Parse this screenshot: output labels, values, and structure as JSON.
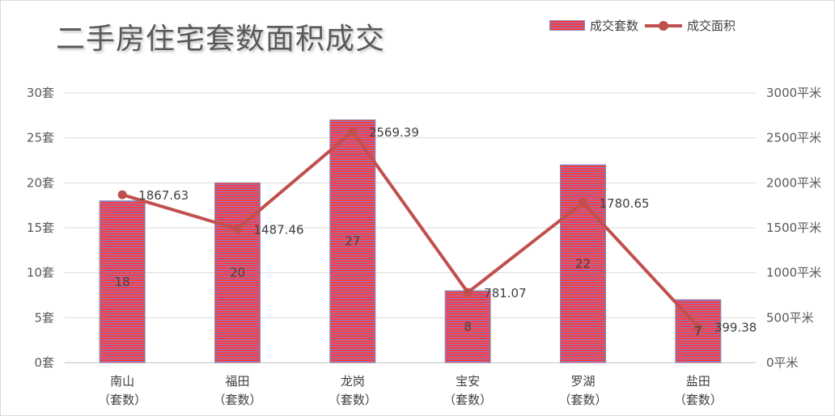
{
  "chart_data": {
    "type": "bar",
    "title": "二手房住宅套数面积成交",
    "categories": [
      [
        "南山",
        "（套数）"
      ],
      [
        "福田",
        "（套数）"
      ],
      [
        "龙岗",
        "（套数）"
      ],
      [
        "宝安",
        "（套数）"
      ],
      [
        "罗湖",
        "（套数）"
      ],
      [
        "盐田",
        "（套数）"
      ]
    ],
    "series": [
      {
        "name": "成交套数",
        "type": "bar",
        "axis": "left",
        "values": [
          18,
          20,
          27,
          8,
          22,
          7
        ],
        "color": "#ff3b3b",
        "stripe_color": "#7f7fd0",
        "data_labels": [
          "18",
          "20",
          "27",
          "8",
          "22",
          "7"
        ]
      },
      {
        "name": "成交面积",
        "type": "line",
        "axis": "right",
        "values": [
          1867.63,
          1487.46,
          2569.39,
          781.07,
          1780.65,
          399.38
        ],
        "color": "#c0504d",
        "data_labels": [
          "1867.63",
          "1487.46",
          "2569.39",
          "781.07",
          "1780.65",
          "399.38"
        ]
      }
    ],
    "y_left": {
      "range": [
        0,
        30
      ],
      "ticks": [
        0,
        5,
        10,
        15,
        20,
        25,
        30
      ],
      "tick_labels": [
        "0套",
        "5套",
        "10套",
        "15套",
        "20套",
        "25套",
        "30套"
      ]
    },
    "y_right": {
      "range": [
        0,
        3000
      ],
      "ticks": [
        0,
        500,
        1000,
        1500,
        2000,
        2500,
        3000
      ],
      "tick_labels": [
        "0平米",
        "500平米",
        "1000平米",
        "1500平米",
        "2000平米",
        "2500平米",
        "3000平米"
      ]
    },
    "grid": true,
    "gridline_color": "#d9d9d9",
    "legend_position": "top-right"
  }
}
